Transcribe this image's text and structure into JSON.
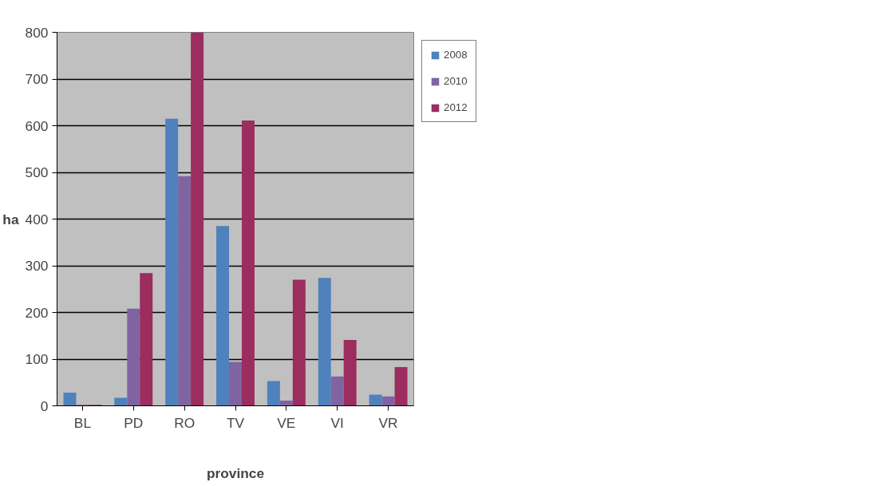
{
  "chart_data": {
    "type": "bar",
    "xlabel": "province",
    "ylabel": "ha",
    "categories": [
      "BL",
      "PD",
      "RO",
      "TV",
      "VE",
      "VI",
      "VR"
    ],
    "series": [
      {
        "name": "2008",
        "color": "#4f81bd",
        "values": [
          28,
          17,
          615,
          385,
          53,
          274,
          24
        ]
      },
      {
        "name": "2010",
        "color": "#8064a2",
        "values": [
          2,
          208,
          492,
          94,
          11,
          63,
          20
        ]
      },
      {
        "name": "2012",
        "color": "#9b2d5f",
        "values": [
          2,
          284,
          800,
          611,
          270,
          141,
          83
        ]
      }
    ],
    "ylim": [
      0,
      800
    ],
    "yticks": [
      0,
      100,
      200,
      300,
      400,
      500,
      600,
      700,
      800
    ],
    "grid": "y",
    "legend": "top right"
  }
}
